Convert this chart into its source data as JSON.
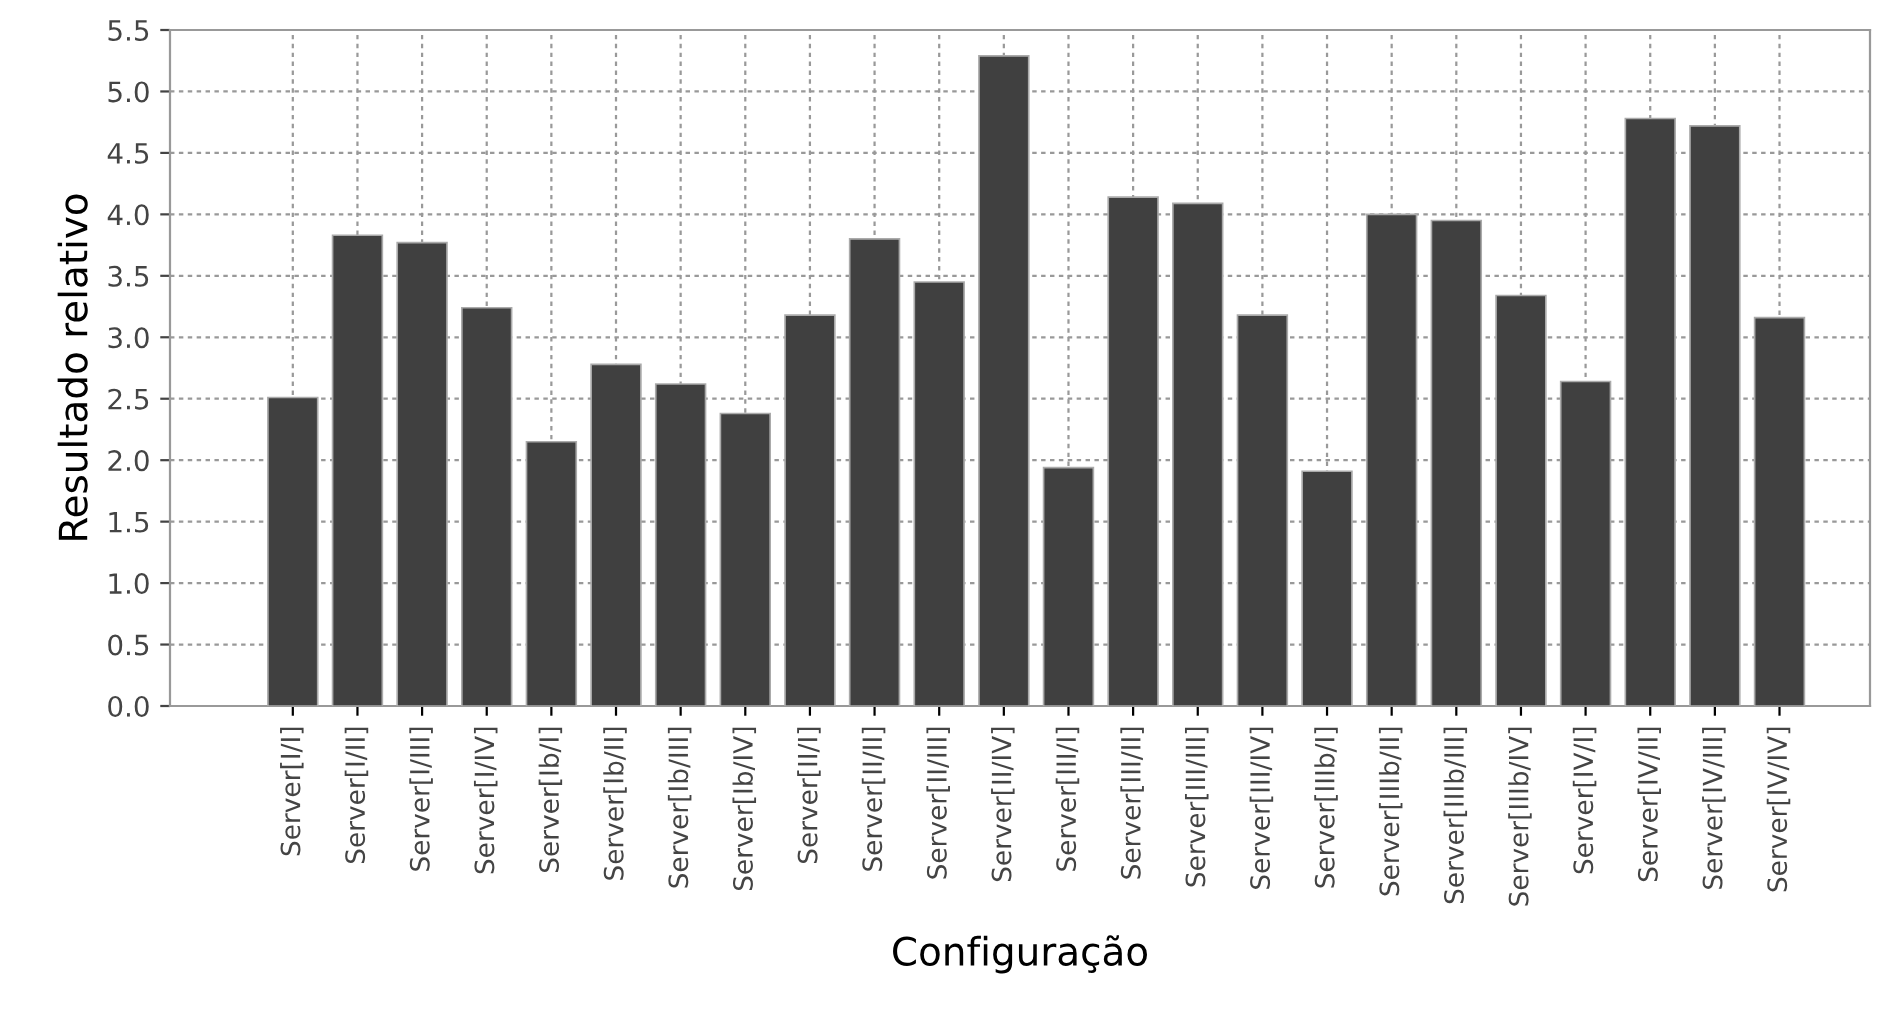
{
  "chart_data": {
    "type": "bar",
    "xlabel": "Configuração",
    "ylabel": "Resultado relativo",
    "categories": [
      "Server[I/I]",
      "Server[I/II]",
      "Server[I/III]",
      "Server[I/IV]",
      "Server[Ib/I]",
      "Server[Ib/II]",
      "Server[Ib/III]",
      "Server[Ib/IV]",
      "Server[II/I]",
      "Server[II/II]",
      "Server[II/III]",
      "Server[II/IV]",
      "Server[III/I]",
      "Server[III/II]",
      "Server[III/III]",
      "Server[III/IV]",
      "Server[IIIb/I]",
      "Server[IIIb/II]",
      "Server[IIIb/III]",
      "Server[IIIb/IV]",
      "Server[IV/I]",
      "Server[IV/II]",
      "Server[IV/III]",
      "Server[IV/IV]"
    ],
    "values": [
      2.51,
      3.83,
      3.77,
      3.24,
      2.15,
      2.78,
      2.62,
      2.38,
      3.18,
      3.8,
      3.45,
      5.29,
      1.94,
      4.14,
      4.09,
      3.18,
      1.91,
      4.0,
      3.95,
      3.34,
      2.64,
      4.78,
      4.72,
      3.16
    ],
    "color": "#404040",
    "ylim": [
      0,
      5.5
    ],
    "yticks": [
      {
        "value": 0,
        "label": "0.0"
      },
      {
        "value": 0.5,
        "label": "0.5"
      },
      {
        "value": 1,
        "label": "1.0"
      },
      {
        "value": 1.5,
        "label": "1.5"
      },
      {
        "value": 2,
        "label": "2.0"
      },
      {
        "value": 2.5,
        "label": "2.5"
      },
      {
        "value": 3,
        "label": "3.0"
      },
      {
        "value": 3.5,
        "label": "3.5"
      },
      {
        "value": 4,
        "label": "4.0"
      },
      {
        "value": 4.5,
        "label": "4.5"
      },
      {
        "value": 5,
        "label": "5.0"
      },
      {
        "value": 5.5,
        "label": "5.5"
      }
    ],
    "grid": true
  }
}
